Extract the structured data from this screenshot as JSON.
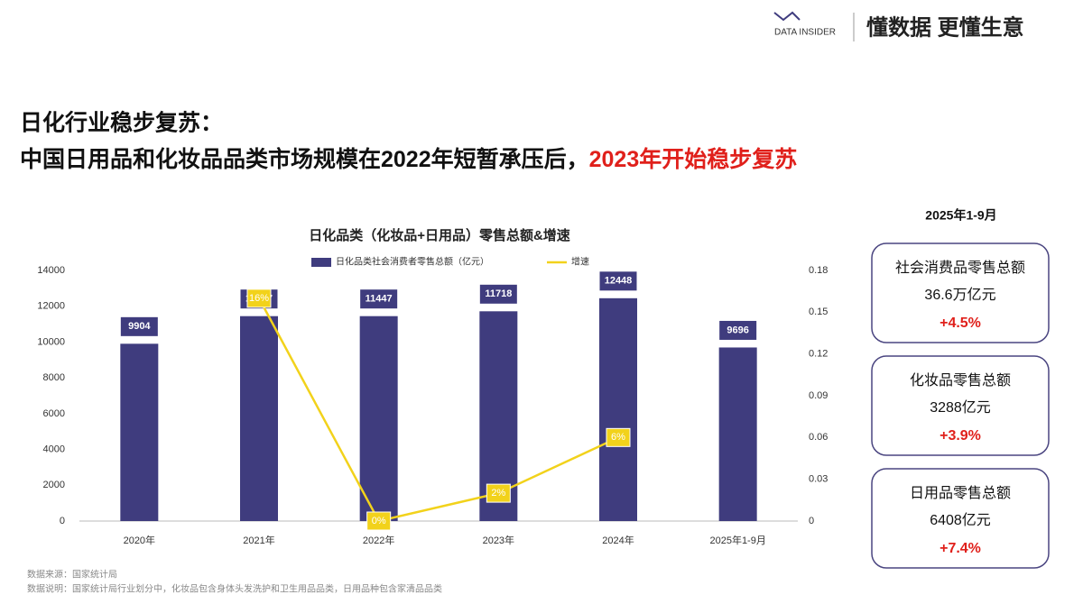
{
  "header": {
    "logo": "DATA INSIDER",
    "slogan": "懂数据 更懂生意"
  },
  "title": {
    "line1": "日化行业稳步复苏：",
    "line2": "中国日用品和化妆品品类市场规模在2022年短暂承压后，",
    "line2_highlight": "2023年开始稳步复苏"
  },
  "chart_data": {
    "type": "bar",
    "title": "日化品类（化妆品+日用品）零售总额&增速",
    "categories": [
      "2020年",
      "2021年",
      "2022年",
      "2023年",
      "2024年",
      "2025年1-9月"
    ],
    "series": [
      {
        "name": "日化品类社会消费者零售总额（亿元）",
        "color": "#3f3c7e",
        "values": [
          9904,
          11447,
          11447,
          11718,
          12448,
          9696
        ]
      },
      {
        "name": "增速",
        "type": "line",
        "axis": "y2",
        "color": "#f2d21b",
        "values": [
          null,
          0.16,
          0,
          0.02,
          0.06,
          null
        ],
        "value_labels": [
          null,
          "16%",
          "0%",
          "2%",
          "6%",
          null
        ]
      }
    ],
    "ylim": [
      0,
      14000
    ],
    "yticks": [
      0,
      2000,
      4000,
      6000,
      8000,
      10000,
      12000,
      14000
    ],
    "y2lim": [
      0,
      0.18
    ],
    "y2ticks": [
      0,
      0.03,
      0.06,
      0.09,
      0.12,
      0.15,
      0.18
    ],
    "grid": false
  },
  "side_panel": {
    "period": "2025年1-9月",
    "cards": [
      {
        "label": "社会消费品零售总额",
        "value": "36.6万亿元",
        "change": "+4.5%"
      },
      {
        "label": "化妆品零售总额",
        "value": "3288亿元",
        "change": "+3.9%"
      },
      {
        "label": "日用品零售总额",
        "value": "6408亿元",
        "change": "+7.4%"
      }
    ]
  },
  "notes": [
    "数据来源：国家统计局",
    "数据说明：国家统计局行业划分中，化妆品包含身体头发洗护和卫生用品品类，日用品种包含家清品品类"
  ]
}
